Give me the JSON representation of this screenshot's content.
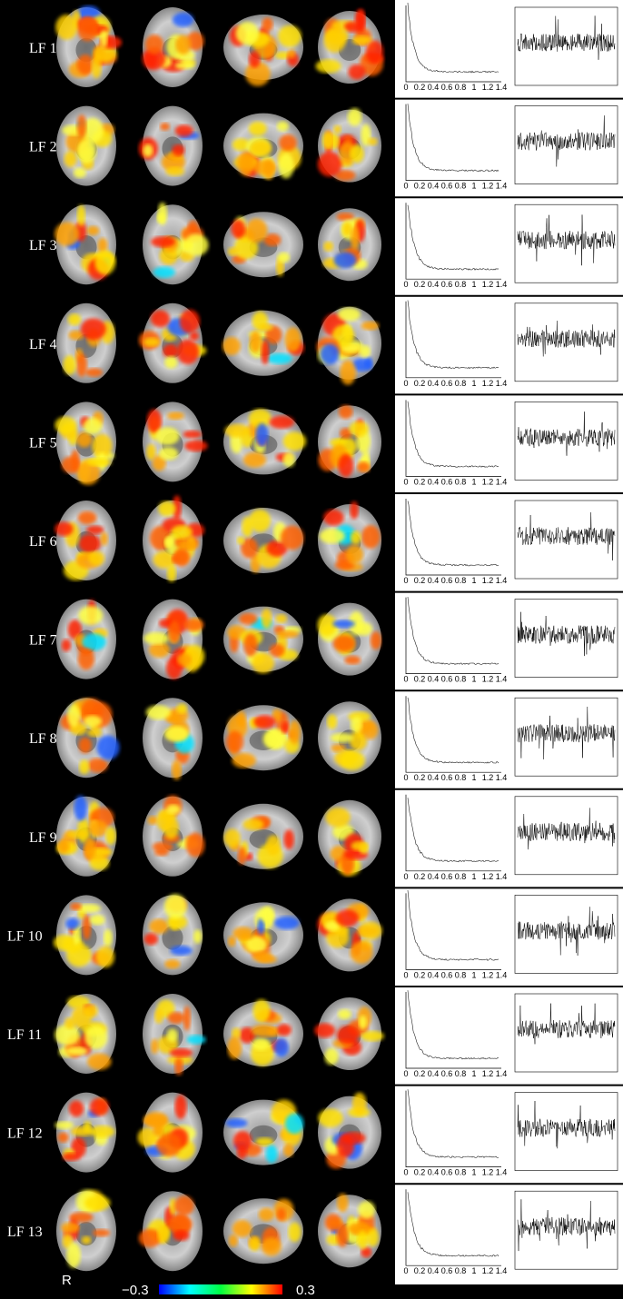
{
  "rows": [
    {
      "label": "LF 1"
    },
    {
      "label": "LF 2"
    },
    {
      "label": "LF 3"
    },
    {
      "label": "LF 4"
    },
    {
      "label": "LF 5"
    },
    {
      "label": "LF 6"
    },
    {
      "label": "LF 7"
    },
    {
      "label": "LF 8"
    },
    {
      "label": "LF 9"
    },
    {
      "label": "LF 10"
    },
    {
      "label": "LF 11"
    },
    {
      "label": "LF 12"
    },
    {
      "label": "LF 13"
    }
  ],
  "spectrum_ticks": [
    "0",
    "0.2",
    "0.4",
    "0.6",
    "0.8",
    "1",
    "1.2",
    "1.4"
  ],
  "orientation_label": "R",
  "colorbar": {
    "min_label": "−0.3",
    "max_label": "0.3"
  }
}
